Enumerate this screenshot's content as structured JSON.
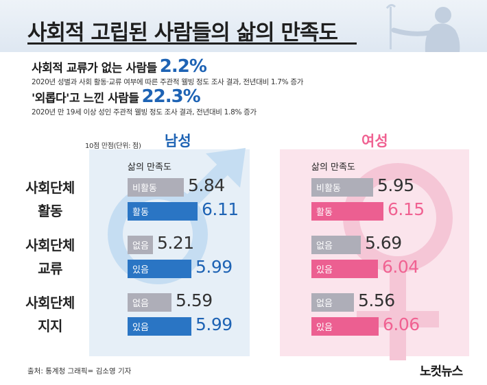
{
  "title": "사회적 고립된 사람들의 삶의 만족도",
  "stats": [
    {
      "label": "사회적 교류가 없는 사람들",
      "value": "2.2%",
      "note": "2020년 성별과 사회 활동·교류 여부에 따른 주관적 웰빙 정도 조사 결과, 전년대비 1.7% 증가"
    },
    {
      "label": "'외롭다'고 느낀 사람들",
      "value": "22.3%",
      "note": "2020년 만 19세 이상 성인 주관적 웰빙 정도 조사 결과, 전년대비 1.8% 증가"
    }
  ],
  "unit_note": "10점 만점(단위: 점)",
  "satisfaction_header": "삶의 만족도",
  "row_labels": [
    [
      "사회단체",
      "활동"
    ],
    [
      "사회단체",
      "교류"
    ],
    [
      "사회단체",
      "지지"
    ]
  ],
  "source": "출처: 통계청   그래픽= 김소영 기자",
  "logo": "노컷뉴스",
  "colors": {
    "male_accent": "#1e63b4",
    "male_bar": "#2a75c4",
    "female_accent": "#f06292",
    "female_bar": "#ec5f91",
    "grey_bar": "#aeaeb8"
  },
  "chart_data": {
    "type": "bar",
    "orientation": "horizontal",
    "unit": "점",
    "max_score": 10,
    "groups": [
      {
        "name": "남성",
        "rows": [
          {
            "category": "사회단체 활동",
            "bars": [
              {
                "label": "비활동",
                "value": 5.84
              },
              {
                "label": "활동",
                "value": 6.11
              }
            ]
          },
          {
            "category": "사회단체 교류",
            "bars": [
              {
                "label": "없음",
                "value": 5.21
              },
              {
                "label": "있음",
                "value": 5.99
              }
            ]
          },
          {
            "category": "사회단체 지지",
            "bars": [
              {
                "label": "없음",
                "value": 5.59
              },
              {
                "label": "있음",
                "value": 5.99
              }
            ]
          }
        ]
      },
      {
        "name": "여성",
        "rows": [
          {
            "category": "사회단체 활동",
            "bars": [
              {
                "label": "비활동",
                "value": 5.95
              },
              {
                "label": "활동",
                "value": 6.15
              }
            ]
          },
          {
            "category": "사회단체 교류",
            "bars": [
              {
                "label": "없음",
                "value": 5.69
              },
              {
                "label": "있음",
                "value": 6.04
              }
            ]
          },
          {
            "category": "사회단체 지지",
            "bars": [
              {
                "label": "없음",
                "value": 5.56
              },
              {
                "label": "있음",
                "value": 6.06
              }
            ]
          }
        ]
      }
    ]
  }
}
